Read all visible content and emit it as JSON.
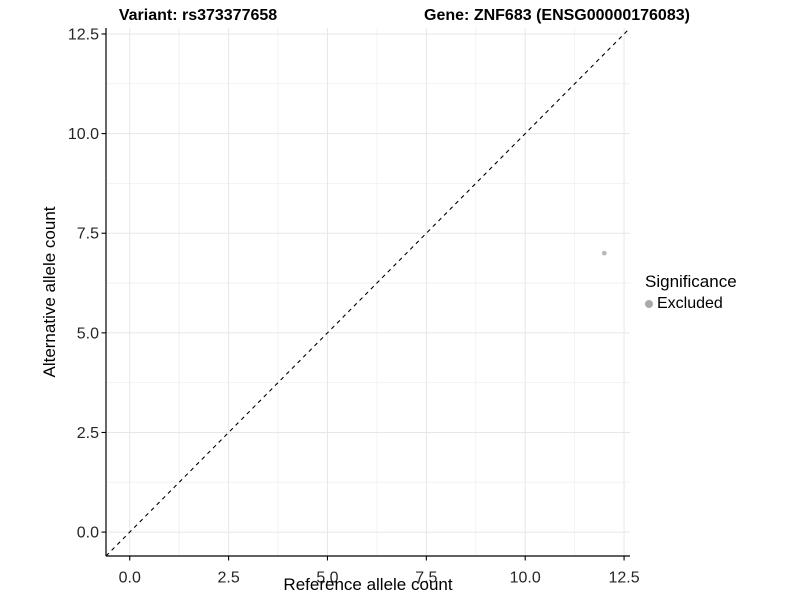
{
  "chart_data": {
    "type": "scatter",
    "title_left": "Variant: rs373377658",
    "title_right": "Gene: ZNF683 (ENSG00000176083)",
    "xlabel": "Reference allele count",
    "ylabel": "Alternative allele count",
    "xlim": [
      -0.6,
      12.65
    ],
    "ylim": [
      -0.6,
      12.65
    ],
    "x_ticks": {
      "values": [
        0,
        2.5,
        5,
        7.5,
        10,
        12.5
      ],
      "labels": [
        "0.0",
        "2.5",
        "5.0",
        "7.5",
        "10.0",
        "12.5"
      ]
    },
    "y_ticks": {
      "values": [
        0,
        2.5,
        5,
        7.5,
        10,
        12.5
      ],
      "labels": [
        "0.0",
        "2.5",
        "5.0",
        "7.5",
        "10.0",
        "12.5"
      ]
    },
    "grid": {
      "major": true,
      "minor": true
    },
    "identity_line": {
      "equation": "y = x",
      "style": "dashed",
      "color": "#000000"
    },
    "series": [
      {
        "name": "Excluded",
        "color": "#b9b9b9",
        "points": [
          {
            "x": 12,
            "y": 7
          }
        ]
      }
    ],
    "legend": {
      "title": "Significance",
      "position": "right",
      "items": [
        {
          "label": "Excluded",
          "color": "#a9a9a9"
        }
      ]
    },
    "colors": {
      "background": "#ffffff",
      "axis": "#000000",
      "major_grid": "#e7e7e7",
      "minor_grid": "#f2f2f2",
      "tick_text": "#262626"
    }
  }
}
